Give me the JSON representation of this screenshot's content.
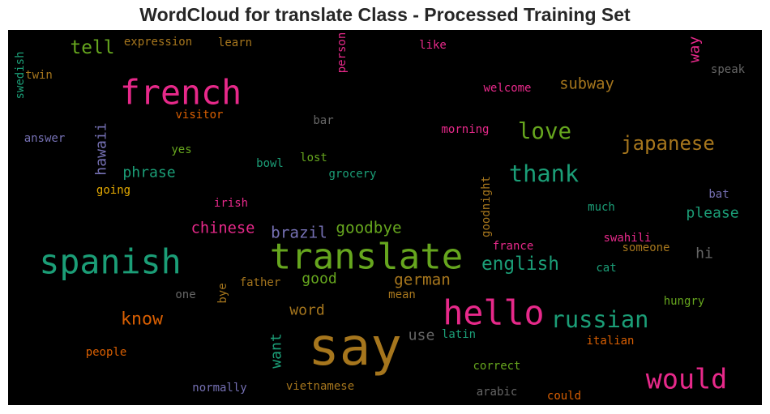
{
  "chart_data": {
    "type": "wordcloud",
    "title": "WordCloud for translate Class - Processed Training Set",
    "background": "#000000",
    "palette": "Dark2",
    "words": [
      {
        "text": "say",
        "weight": 100,
        "color": "#a6761d",
        "orientation": "horizontal"
      },
      {
        "text": "translate",
        "weight": 66,
        "color": "#66a61e",
        "orientation": "horizontal"
      },
      {
        "text": "french",
        "weight": 62,
        "color": "#e7298a",
        "orientation": "horizontal"
      },
      {
        "text": "hello",
        "weight": 62,
        "color": "#e7298a",
        "orientation": "horizontal"
      },
      {
        "text": "spanish",
        "weight": 62,
        "color": "#1b9e77",
        "orientation": "horizontal"
      },
      {
        "text": "would",
        "weight": 48,
        "color": "#e7298a",
        "orientation": "horizontal"
      },
      {
        "text": "thank",
        "weight": 40,
        "color": "#1b9e77",
        "orientation": "horizontal"
      },
      {
        "text": "russian",
        "weight": 40,
        "color": "#1b9e77",
        "orientation": "horizontal"
      },
      {
        "text": "love",
        "weight": 38,
        "color": "#66a61e",
        "orientation": "horizontal"
      },
      {
        "text": "japanese",
        "weight": 32,
        "color": "#a6761d",
        "orientation": "horizontal"
      },
      {
        "text": "english",
        "weight": 30,
        "color": "#1b9e77",
        "orientation": "horizontal"
      },
      {
        "text": "tell",
        "weight": 30,
        "color": "#66a61e",
        "orientation": "horizontal"
      },
      {
        "text": "know",
        "weight": 28,
        "color": "#d95f02",
        "orientation": "horizontal"
      },
      {
        "text": "goodbye",
        "weight": 24,
        "color": "#66a61e",
        "orientation": "horizontal"
      },
      {
        "text": "german",
        "weight": 24,
        "color": "#a6761d",
        "orientation": "horizontal"
      },
      {
        "text": "brazil",
        "weight": 24,
        "color": "#7570b3",
        "orientation": "horizontal"
      },
      {
        "text": "chinese",
        "weight": 23,
        "color": "#e7298a",
        "orientation": "horizontal"
      },
      {
        "text": "subway",
        "weight": 23,
        "color": "#a6761d",
        "orientation": "horizontal"
      },
      {
        "text": "phrase",
        "weight": 22,
        "color": "#1b9e77",
        "orientation": "horizontal"
      },
      {
        "text": "please",
        "weight": 22,
        "color": "#1b9e77",
        "orientation": "horizontal"
      },
      {
        "text": "good",
        "weight": 22,
        "color": "#66a61e",
        "orientation": "horizontal"
      },
      {
        "text": "hi",
        "weight": 22,
        "color": "#666666",
        "orientation": "horizontal"
      },
      {
        "text": "word",
        "weight": 22,
        "color": "#a6761d",
        "orientation": "horizontal"
      },
      {
        "text": "use",
        "weight": 22,
        "color": "#666666",
        "orientation": "horizontal"
      },
      {
        "text": "way",
        "weight": 22,
        "color": "#e7298a",
        "orientation": "vertical"
      },
      {
        "text": "hawaii",
        "weight": 22,
        "color": "#7570b3",
        "orientation": "vertical"
      },
      {
        "text": "want",
        "weight": 22,
        "color": "#1b9e77",
        "orientation": "vertical"
      },
      {
        "text": "expression",
        "weight": 15,
        "color": "#a6761d",
        "orientation": "horizontal"
      },
      {
        "text": "learn",
        "weight": 15,
        "color": "#a6761d",
        "orientation": "horizontal"
      },
      {
        "text": "like",
        "weight": 15,
        "color": "#e7298a",
        "orientation": "horizontal"
      },
      {
        "text": "twin",
        "weight": 15,
        "color": "#a6761d",
        "orientation": "horizontal"
      },
      {
        "text": "speak",
        "weight": 15,
        "color": "#666666",
        "orientation": "horizontal"
      },
      {
        "text": "welcome",
        "weight": 15,
        "color": "#e7298a",
        "orientation": "horizontal"
      },
      {
        "text": "visitor",
        "weight": 15,
        "color": "#d95f02",
        "orientation": "horizontal"
      },
      {
        "text": "bar",
        "weight": 15,
        "color": "#666666",
        "orientation": "horizontal"
      },
      {
        "text": "answer",
        "weight": 15,
        "color": "#7570b3",
        "orientation": "horizontal"
      },
      {
        "text": "morning",
        "weight": 15,
        "color": "#e7298a",
        "orientation": "horizontal"
      },
      {
        "text": "yes",
        "weight": 15,
        "color": "#66a61e",
        "orientation": "horizontal"
      },
      {
        "text": "lost",
        "weight": 15,
        "color": "#66a61e",
        "orientation": "horizontal"
      },
      {
        "text": "bowl",
        "weight": 15,
        "color": "#1b9e77",
        "orientation": "horizontal"
      },
      {
        "text": "grocery",
        "weight": 15,
        "color": "#1b9e77",
        "orientation": "horizontal"
      },
      {
        "text": "going",
        "weight": 15,
        "color": "#e6ab02",
        "orientation": "horizontal"
      },
      {
        "text": "bat",
        "weight": 15,
        "color": "#7570b3",
        "orientation": "horizontal"
      },
      {
        "text": "irish",
        "weight": 15,
        "color": "#e7298a",
        "orientation": "horizontal"
      },
      {
        "text": "much",
        "weight": 15,
        "color": "#1b9e77",
        "orientation": "horizontal"
      },
      {
        "text": "swahili",
        "weight": 15,
        "color": "#e7298a",
        "orientation": "horizontal"
      },
      {
        "text": "france",
        "weight": 15,
        "color": "#e7298a",
        "orientation": "horizontal"
      },
      {
        "text": "someone",
        "weight": 15,
        "color": "#a6761d",
        "orientation": "horizontal"
      },
      {
        "text": "cat",
        "weight": 15,
        "color": "#1b9e77",
        "orientation": "horizontal"
      },
      {
        "text": "father",
        "weight": 15,
        "color": "#a6761d",
        "orientation": "horizontal"
      },
      {
        "text": "one",
        "weight": 15,
        "color": "#666666",
        "orientation": "horizontal"
      },
      {
        "text": "mean",
        "weight": 15,
        "color": "#a6761d",
        "orientation": "horizontal"
      },
      {
        "text": "hungry",
        "weight": 15,
        "color": "#66a61e",
        "orientation": "horizontal"
      },
      {
        "text": "latin",
        "weight": 15,
        "color": "#1b9e77",
        "orientation": "horizontal"
      },
      {
        "text": "italian",
        "weight": 15,
        "color": "#d95f02",
        "orientation": "horizontal"
      },
      {
        "text": "people",
        "weight": 15,
        "color": "#d95f02",
        "orientation": "horizontal"
      },
      {
        "text": "correct",
        "weight": 15,
        "color": "#66a61e",
        "orientation": "horizontal"
      },
      {
        "text": "normally",
        "weight": 15,
        "color": "#7570b3",
        "orientation": "horizontal"
      },
      {
        "text": "vietnamese",
        "weight": 15,
        "color": "#a6761d",
        "orientation": "horizontal"
      },
      {
        "text": "arabic",
        "weight": 15,
        "color": "#666666",
        "orientation": "horizontal"
      },
      {
        "text": "could",
        "weight": 15,
        "color": "#d95f02",
        "orientation": "horizontal"
      },
      {
        "text": "person",
        "weight": 15,
        "color": "#e7298a",
        "orientation": "vertical"
      },
      {
        "text": "swedish",
        "weight": 15,
        "color": "#1b9e77",
        "orientation": "vertical"
      },
      {
        "text": "goodnight",
        "weight": 15,
        "color": "#a6761d",
        "orientation": "vertical"
      },
      {
        "text": "bye",
        "weight": 15,
        "color": "#a6761d",
        "orientation": "vertical"
      }
    ]
  }
}
